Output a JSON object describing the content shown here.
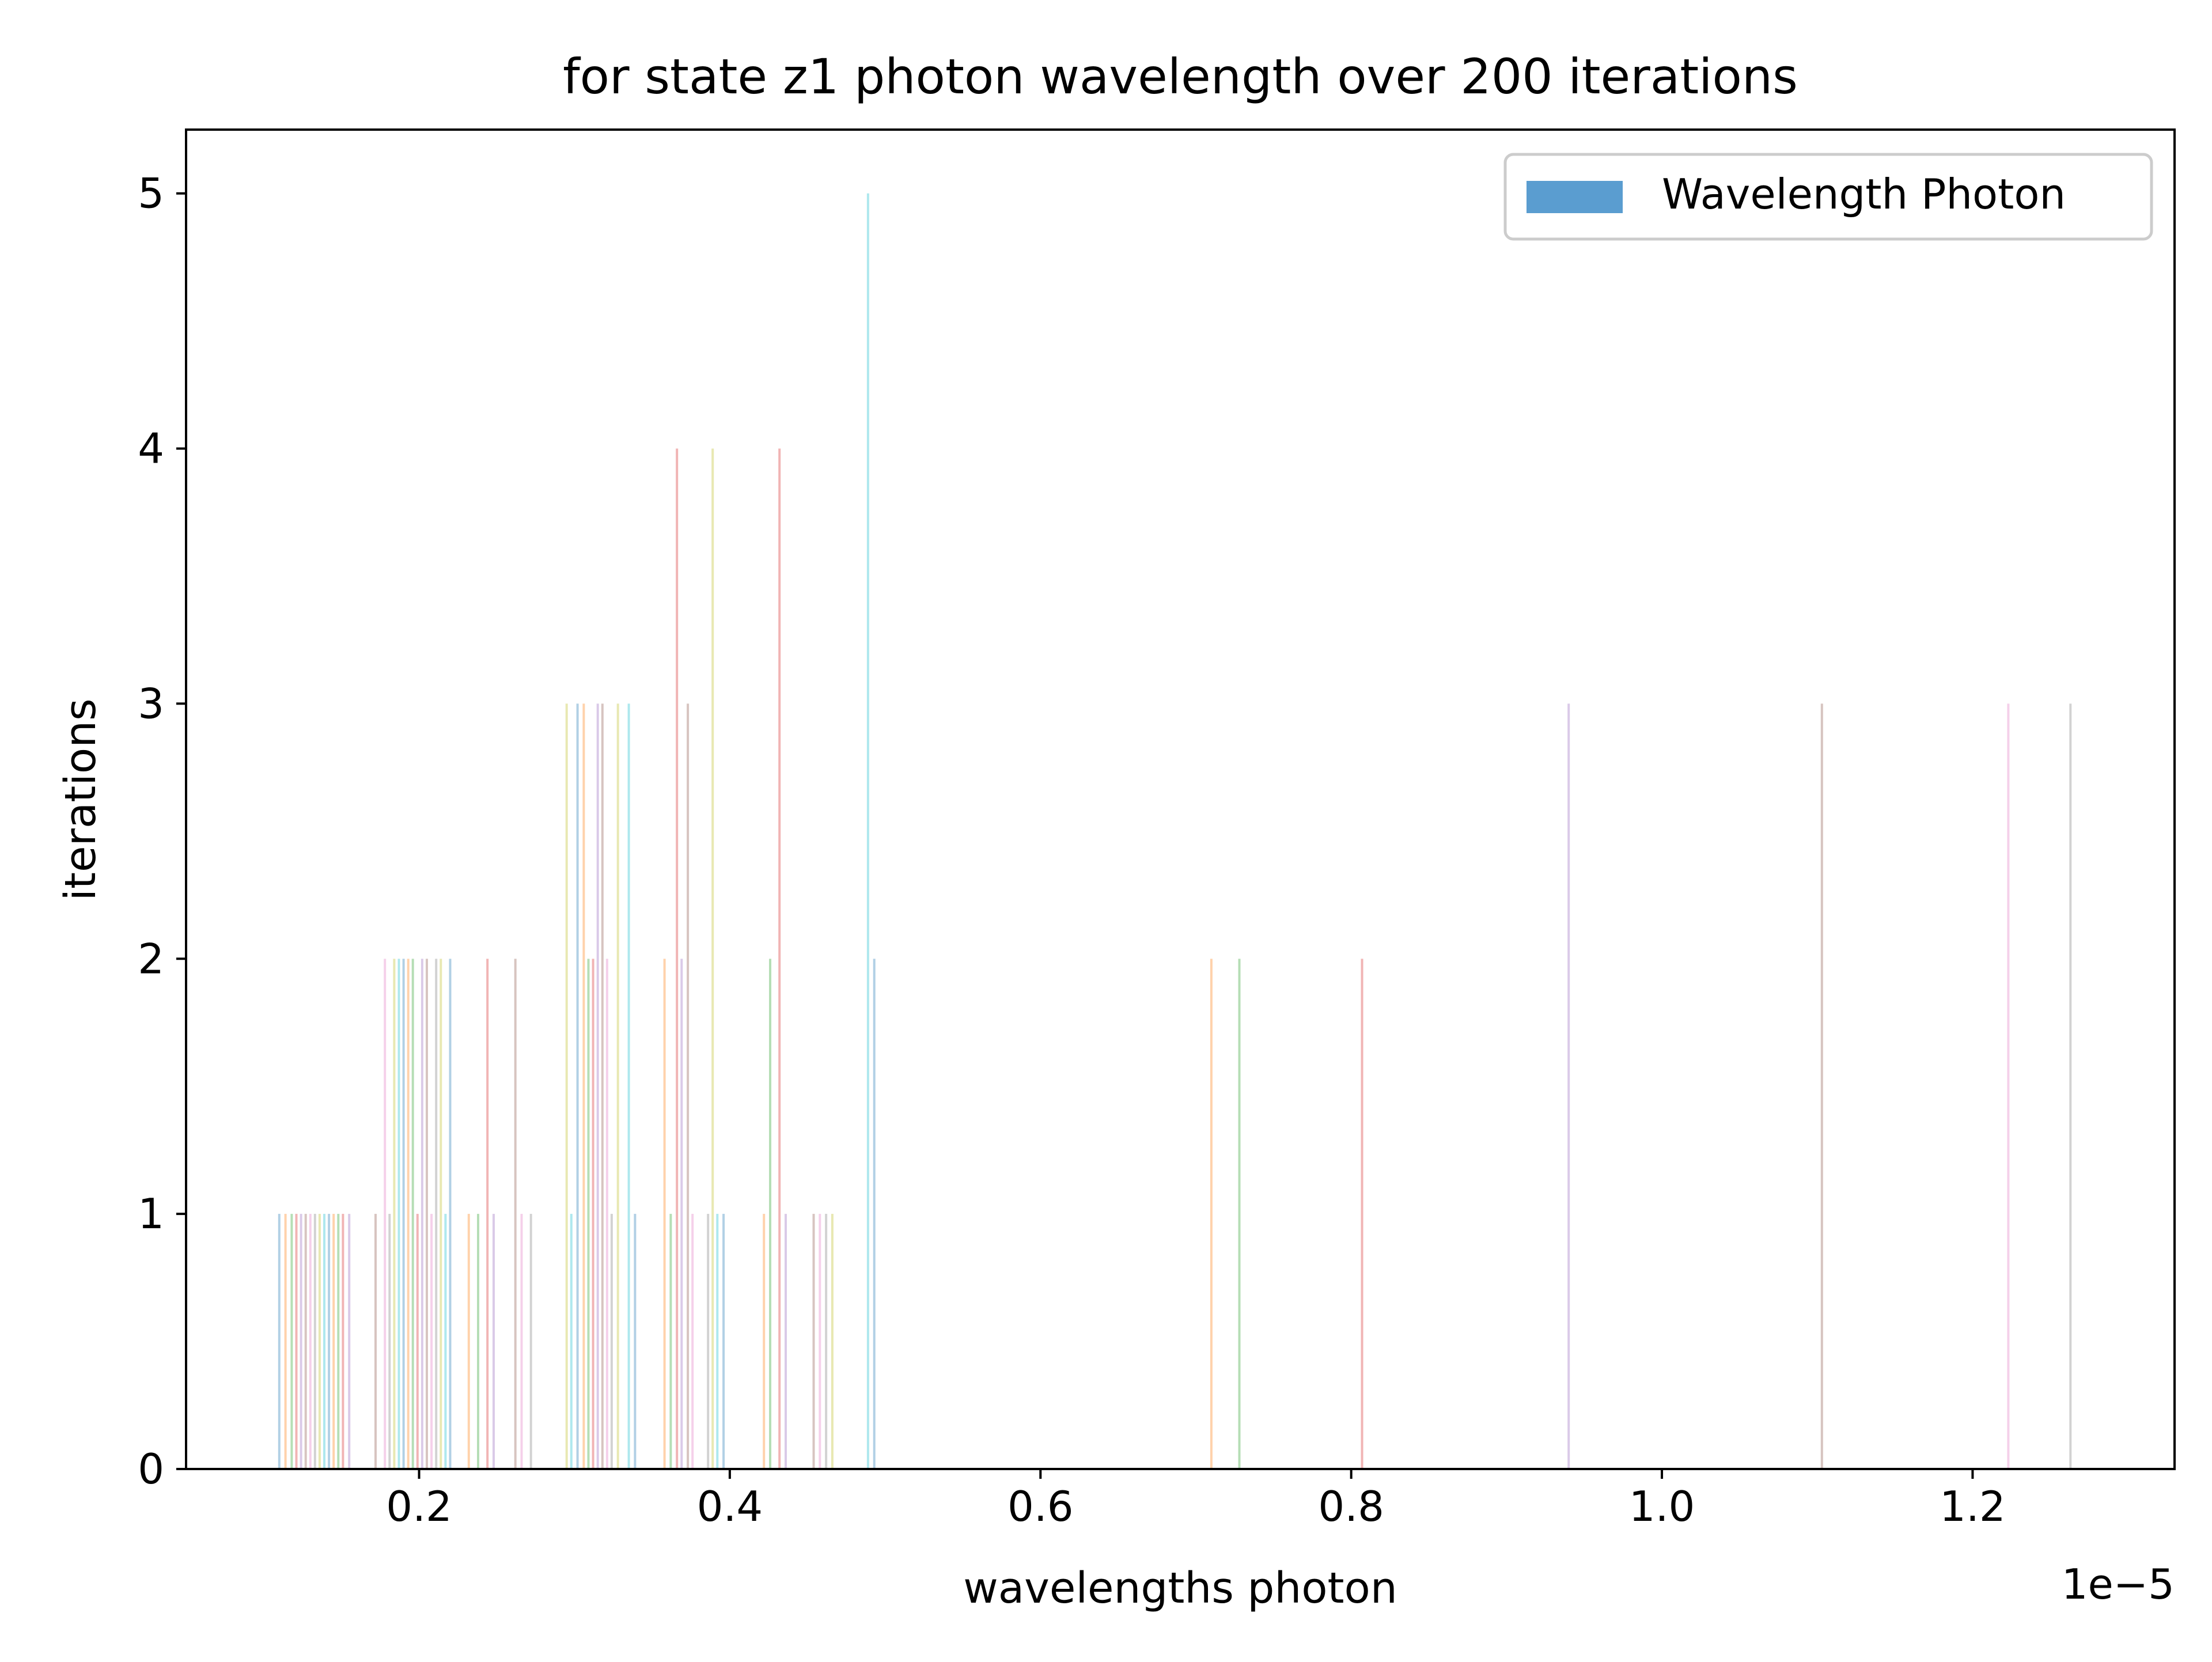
{
  "colors": {
    "legend_patch": "#5a9dd0",
    "axis": "#000000",
    "background": "#ffffff",
    "bar_palette": [
      "#1f77b4",
      "#ff7f0e",
      "#2ca02c",
      "#d62728",
      "#9467bd",
      "#8c564b",
      "#e377c2",
      "#7f7f7f",
      "#bcbd22",
      "#17becf"
    ]
  },
  "chart_data": {
    "type": "bar",
    "title": "for state z1 photon wavelength over 200 iterations",
    "xlabel": "wavelengths photon",
    "ylabel": "iterations",
    "x_offset_text": "1e−5",
    "xlim": [
      0.05,
      1.33
    ],
    "ylim": [
      0,
      5.25
    ],
    "xticks": [
      0.2,
      0.4,
      0.6,
      0.8,
      1.0,
      1.2
    ],
    "xtick_labels": [
      "0.2",
      "0.4",
      "0.6",
      "0.8",
      "1.0",
      "1.2"
    ],
    "yticks": [
      0,
      1,
      2,
      3,
      4,
      5
    ],
    "ytick_labels": [
      "0",
      "1",
      "2",
      "3",
      "4",
      "5"
    ],
    "grid": false,
    "legend": {
      "placement": "top-right",
      "entries": [
        "Wavelength Photon"
      ]
    },
    "series": [
      {
        "name": "Wavelength Photon",
        "x": [
          0.11,
          0.114,
          0.118,
          0.121,
          0.124,
          0.127,
          0.13,
          0.133,
          0.136,
          0.139,
          0.142,
          0.145,
          0.148,
          0.151,
          0.155,
          0.172,
          0.178,
          0.181,
          0.184,
          0.187,
          0.19,
          0.193,
          0.196,
          0.199,
          0.202,
          0.205,
          0.208,
          0.211,
          0.214,
          0.217,
          0.22,
          0.232,
          0.238,
          0.244,
          0.248,
          0.262,
          0.266,
          0.272,
          0.295,
          0.298,
          0.302,
          0.306,
          0.309,
          0.312,
          0.315,
          0.318,
          0.321,
          0.324,
          0.328,
          0.335,
          0.339,
          0.358,
          0.362,
          0.366,
          0.369,
          0.373,
          0.376,
          0.386,
          0.389,
          0.392,
          0.396,
          0.422,
          0.426,
          0.432,
          0.436,
          0.454,
          0.458,
          0.462,
          0.466,
          0.489,
          0.493,
          0.71,
          0.728,
          0.807,
          0.94,
          1.103,
          1.223,
          1.263
        ],
        "values": [
          1,
          1,
          1,
          1,
          1,
          1,
          1,
          1,
          1,
          1,
          1,
          1,
          1,
          1,
          1,
          1,
          2,
          1,
          2,
          2,
          2,
          2,
          2,
          1,
          2,
          2,
          1,
          2,
          2,
          1,
          2,
          1,
          1,
          2,
          1,
          2,
          1,
          1,
          3,
          1,
          3,
          3,
          2,
          2,
          3,
          3,
          2,
          1,
          3,
          3,
          1,
          2,
          1,
          4,
          2,
          3,
          1,
          1,
          4,
          1,
          1,
          1,
          2,
          4,
          1,
          1,
          1,
          1,
          1,
          5,
          2,
          2,
          2,
          2,
          3,
          3,
          3,
          3
        ]
      }
    ]
  }
}
